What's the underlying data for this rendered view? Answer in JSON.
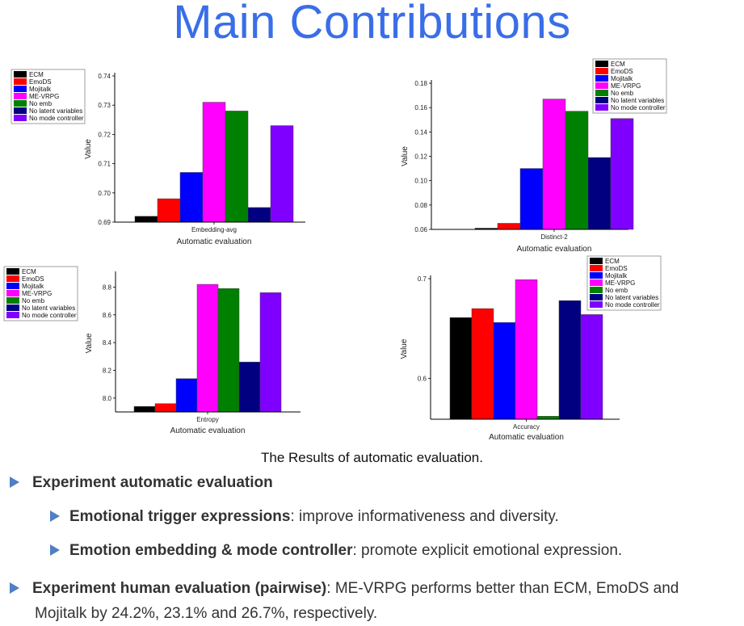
{
  "slide": {
    "title": "Main Contributions",
    "caption": "The Results of automatic evaluation.",
    "bullets": [
      {
        "bold": "Experiment automatic evaluation",
        "text": ""
      },
      {
        "bold": "Emotional trigger expressions",
        "text": ": improve informativeness and diversity."
      },
      {
        "bold": "Emotion embedding & mode controller",
        "text": ": promote explicit emotional expression."
      },
      {
        "bold": "Experiment human evaluation (pairwise)",
        "text": ": ME-VRPG performs better than ECM, EmoDS and",
        "text2": "Mojitalk by 24.2%, 23.1% and 26.7%, respectively."
      }
    ]
  },
  "legend": {
    "entries": [
      "ECM",
      "EmoDS",
      "Mojitalk",
      "ME-VRPG",
      "No emb",
      "No latent variables",
      "No mode controller"
    ],
    "colors": [
      "#000000",
      "#ff0000",
      "#0000ff",
      "#ff00ff",
      "#008000",
      "#000080",
      "#8000ff"
    ]
  },
  "chart_data": [
    {
      "type": "bar",
      "title": "",
      "categories": [
        "Embedding-avg"
      ],
      "xlabel": "Automatic evaluation",
      "ylabel": "Value",
      "ylim": [
        0.69,
        0.74
      ],
      "yticks": [
        "0.69",
        "0.70",
        "0.71",
        "0.72",
        "0.73",
        "0.74"
      ],
      "legend_position": "top-left (outside)",
      "series": [
        {
          "name": "ECM",
          "values": [
            0.692
          ]
        },
        {
          "name": "EmoDS",
          "values": [
            0.698
          ]
        },
        {
          "name": "Mojitalk",
          "values": [
            0.707
          ]
        },
        {
          "name": "ME-VRPG",
          "values": [
            0.731
          ]
        },
        {
          "name": "No emb",
          "values": [
            0.728
          ]
        },
        {
          "name": "No latent variables",
          "values": [
            0.695
          ]
        },
        {
          "name": "No mode controller",
          "values": [
            0.723
          ]
        }
      ]
    },
    {
      "type": "bar",
      "title": "",
      "categories": [
        "Distinct-2"
      ],
      "xlabel": "Automatic evaluation",
      "ylabel": "Value",
      "ylim": [
        0.06,
        0.18
      ],
      "yticks": [
        "0.06",
        "0.08",
        "0.10",
        "0.12",
        "0.14",
        "0.16",
        "0.18"
      ],
      "legend_position": "top-right",
      "series": [
        {
          "name": "ECM",
          "values": [
            0.061
          ]
        },
        {
          "name": "EmoDS",
          "values": [
            0.065
          ]
        },
        {
          "name": "Mojitalk",
          "values": [
            0.11
          ]
        },
        {
          "name": "ME-VRPG",
          "values": [
            0.167
          ]
        },
        {
          "name": "No emb",
          "values": [
            0.157
          ]
        },
        {
          "name": "No latent variables",
          "values": [
            0.119
          ]
        },
        {
          "name": "No mode controller",
          "values": [
            0.151
          ]
        }
      ]
    },
    {
      "type": "bar",
      "title": "",
      "categories": [
        "Entropy"
      ],
      "xlabel": "Automatic evaluation",
      "ylabel": "Value",
      "ylim": [
        7.9,
        8.9
      ],
      "yticks": [
        "8.0",
        "8.2",
        "8.4",
        "8.6",
        "8.8"
      ],
      "legend_position": "top-left (outside)",
      "series": [
        {
          "name": "ECM",
          "values": [
            7.94
          ]
        },
        {
          "name": "EmoDS",
          "values": [
            7.96
          ]
        },
        {
          "name": "Mojitalk",
          "values": [
            8.14
          ]
        },
        {
          "name": "ME-VRPG",
          "values": [
            8.82
          ]
        },
        {
          "name": "No emb",
          "values": [
            8.79
          ]
        },
        {
          "name": "No latent variables",
          "values": [
            8.26
          ]
        },
        {
          "name": "No mode controller",
          "values": [
            8.76
          ]
        }
      ]
    },
    {
      "type": "bar",
      "title": "",
      "categories": [
        "Accuracy"
      ],
      "xlabel": "Automatic evaluation",
      "ylabel": "Value",
      "ylim": [
        0.559,
        0.7
      ],
      "yticks": [
        "0.6",
        "0.7"
      ],
      "legend_position": "top-right",
      "series": [
        {
          "name": "ECM",
          "values": [
            0.661
          ]
        },
        {
          "name": "EmoDS",
          "values": [
            0.67
          ]
        },
        {
          "name": "Mojitalk",
          "values": [
            0.656
          ]
        },
        {
          "name": "ME-VRPG",
          "values": [
            0.699
          ]
        },
        {
          "name": "No emb",
          "values": [
            0.562
          ]
        },
        {
          "name": "No latent variables",
          "values": [
            0.678
          ]
        },
        {
          "name": "No mode controller",
          "values": [
            0.664
          ]
        }
      ]
    }
  ]
}
